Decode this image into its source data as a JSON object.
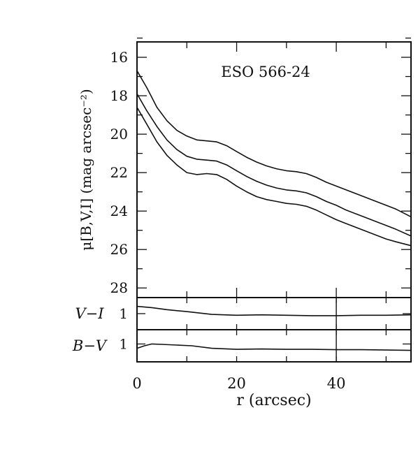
{
  "chart_data": [
    {
      "type": "line",
      "title": "ESO 566-24",
      "ylabel": "μ[B,V,I] (mag arcsec⁻²)",
      "xlim": [
        0,
        55
      ],
      "ylim": [
        28.5,
        15.2
      ],
      "y_inverted": true,
      "y_ticks": [
        16,
        18,
        20,
        22,
        24,
        26,
        28
      ],
      "series": [
        {
          "x": [
            0,
            2,
            4,
            6,
            8,
            10,
            12,
            14,
            16,
            18,
            20,
            22,
            24,
            26,
            28,
            30,
            32,
            34,
            36,
            38,
            40,
            42,
            44,
            46,
            48,
            50,
            52,
            55
          ],
          "values": [
            16.7,
            17.6,
            18.6,
            19.3,
            19.8,
            20.1,
            20.3,
            20.35,
            20.4,
            20.6,
            20.9,
            21.2,
            21.45,
            21.65,
            21.8,
            21.9,
            21.95,
            22.05,
            22.25,
            22.5,
            22.7,
            22.9,
            23.1,
            23.3,
            23.5,
            23.7,
            23.9,
            24.3
          ]
        },
        {
          "x": [
            0,
            2,
            4,
            6,
            8,
            10,
            12,
            14,
            16,
            18,
            20,
            22,
            24,
            26,
            28,
            30,
            32,
            34,
            36,
            38,
            40,
            42,
            44,
            46,
            48,
            50,
            52,
            55
          ],
          "values": [
            17.9,
            18.8,
            19.6,
            20.3,
            20.8,
            21.15,
            21.3,
            21.35,
            21.4,
            21.6,
            21.9,
            22.2,
            22.45,
            22.65,
            22.8,
            22.9,
            22.95,
            23.05,
            23.25,
            23.5,
            23.7,
            23.95,
            24.15,
            24.35,
            24.55,
            24.75,
            24.95,
            25.3
          ]
        },
        {
          "x": [
            0,
            2,
            4,
            6,
            8,
            10,
            12,
            14,
            16,
            18,
            20,
            22,
            24,
            26,
            28,
            30,
            32,
            34,
            36,
            38,
            40,
            42,
            44,
            46,
            48,
            50,
            52,
            55
          ],
          "values": [
            18.6,
            19.5,
            20.4,
            21.1,
            21.6,
            22.0,
            22.1,
            22.05,
            22.1,
            22.35,
            22.7,
            23.0,
            23.25,
            23.4,
            23.5,
            23.6,
            23.65,
            23.75,
            23.95,
            24.2,
            24.45,
            24.65,
            24.85,
            25.05,
            25.25,
            25.45,
            25.6,
            25.8
          ]
        }
      ]
    },
    {
      "type": "line",
      "ylabel": "V−I",
      "xlim": [
        0,
        55
      ],
      "ylim": [
        0.6,
        1.4
      ],
      "y_ticks": [
        1
      ],
      "series": [
        {
          "x": [
            0,
            3,
            6,
            10,
            15,
            20,
            25,
            30,
            35,
            40,
            45,
            50,
            55
          ],
          "values": [
            1.18,
            1.15,
            1.1,
            1.05,
            0.98,
            0.96,
            0.97,
            0.96,
            0.95,
            0.95,
            0.96,
            0.96,
            0.97
          ]
        }
      ]
    },
    {
      "type": "line",
      "ylabel": "B−V",
      "xlabel": "r (arcsec)",
      "xlim": [
        0,
        55
      ],
      "x_ticks": [
        0,
        20,
        40
      ],
      "ylim": [
        0.5,
        1.4
      ],
      "y_ticks": [
        1
      ],
      "series": [
        {
          "x": [
            0,
            1.5,
            3,
            5,
            8,
            11,
            15,
            20,
            25,
            30,
            35,
            40,
            45,
            50,
            55
          ],
          "values": [
            0.88,
            0.95,
            1.0,
            0.99,
            0.97,
            0.95,
            0.88,
            0.85,
            0.86,
            0.85,
            0.85,
            0.84,
            0.84,
            0.83,
            0.82
          ]
        }
      ]
    }
  ]
}
